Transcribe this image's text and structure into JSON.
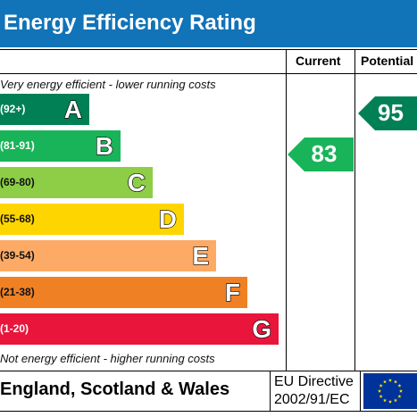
{
  "title": "Energy Efficiency Rating",
  "columns": {
    "current": "Current",
    "potential": "Potential"
  },
  "top_note": "Very energy efficient - lower running costs",
  "bottom_note": "Not energy efficient - higher running costs",
  "bands": [
    {
      "range": "(92+)",
      "letter": "A",
      "color": "#008054"
    },
    {
      "range": "(81-91)",
      "letter": "B",
      "color": "#19b459"
    },
    {
      "range": "(69-80)",
      "letter": "C",
      "color": "#8dce46"
    },
    {
      "range": "(55-68)",
      "letter": "D",
      "color": "#ffd500"
    },
    {
      "range": "(39-54)",
      "letter": "E",
      "color": "#fcaa65"
    },
    {
      "range": "(21-38)",
      "letter": "F",
      "color": "#ef8023"
    },
    {
      "range": "(1-20)",
      "letter": "G",
      "color": "#e9153b"
    }
  ],
  "current": {
    "value": "83",
    "band": "B",
    "color": "#19b459"
  },
  "potential": {
    "value": "95",
    "band": "A",
    "color": "#008054"
  },
  "footer": {
    "region": "England, Scotland & Wales",
    "directive_line1": "EU Directive",
    "directive_line2": "2002/91/EC"
  },
  "colors": {
    "title_bar": "#1173b8",
    "eu_flag": "#003399",
    "eu_stars": "#ffdd00"
  }
}
